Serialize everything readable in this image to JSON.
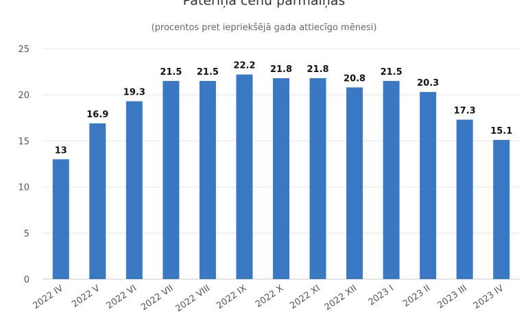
{
  "chart_data": {
    "type": "bar",
    "title": "Patēriņa cenu pārmaiņas",
    "subtitle": "(procentos pret iepriekšējā gada attiecīgo mēnesi)",
    "xlabel": "",
    "ylabel": "",
    "ylim": [
      0,
      25
    ],
    "yticks": [
      "0",
      "5",
      "10",
      "15",
      "20",
      "25"
    ],
    "grid": true,
    "legend": "none",
    "bar_color": "#3a78c4",
    "categories": [
      "2022 IV",
      "2022 V",
      "2022 VI",
      "2022 VII",
      "2022 VIII",
      "2022 IX",
      "2022 X",
      "2022 XI",
      "2022 XII",
      "2023 I",
      "2023 II",
      "2023 III",
      "2023 IV"
    ],
    "values": [
      13,
      16.9,
      19.3,
      21.5,
      21.5,
      22.2,
      21.8,
      21.8,
      20.8,
      21.5,
      20.3,
      17.3,
      15.1
    ],
    "value_labels": [
      "13",
      "16.9",
      "19.3",
      "21.5",
      "21.5",
      "22.2",
      "21.8",
      "21.8",
      "20.8",
      "21.5",
      "20.3",
      "17.3",
      "15.1"
    ]
  }
}
